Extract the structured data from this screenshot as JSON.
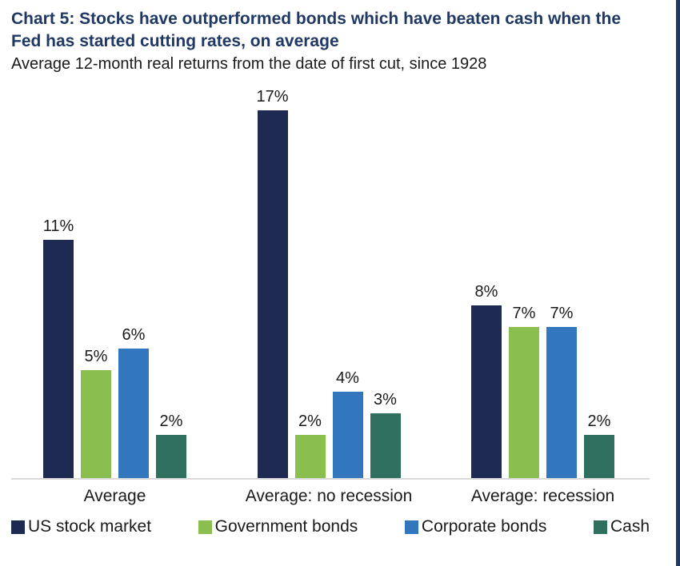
{
  "chart_data": {
    "type": "bar",
    "title": "Chart 5: Stocks have outperformed bonds which have beaten cash when the Fed has started cutting rates, on average",
    "subtitle": "Average 12-month real returns from the date of first cut, since 1928",
    "categories": [
      "Average",
      "Average: no recession",
      "Average: recession"
    ],
    "series": [
      {
        "name": "US stock market",
        "color": "#1f2a52",
        "values": [
          11,
          17,
          8
        ]
      },
      {
        "name": "Government bonds",
        "color": "#8abf50",
        "values": [
          5,
          2,
          7
        ]
      },
      {
        "name": "Corporate bonds",
        "color": "#3277bd",
        "values": [
          6,
          4,
          7
        ]
      },
      {
        "name": "Cash",
        "color": "#2e6f5e",
        "values": [
          2,
          3,
          2
        ]
      }
    ],
    "value_suffix": "%",
    "ylim": [
      0,
      17
    ],
    "grid": false,
    "legend_position": "bottom",
    "title_color": "#1F3864",
    "axis_color": "#d9d9d9",
    "accent_stripe_color": "#1F3864"
  }
}
